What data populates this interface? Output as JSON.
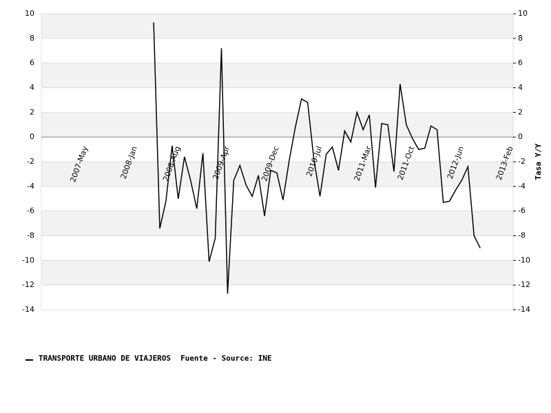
{
  "chart_data": {
    "type": "line",
    "y2_label": "Tasa Y/Y",
    "source": "Fuente - Source: INE",
    "categories": [
      null,
      null,
      null,
      null,
      null,
      null,
      null,
      "2007-May",
      null,
      null,
      null,
      null,
      null,
      null,
      null,
      "2008-Jan",
      null,
      null,
      null,
      null,
      null,
      null,
      "2008-Aug",
      null,
      null,
      null,
      null,
      null,
      null,
      null,
      "2009-Apr",
      null,
      null,
      null,
      null,
      null,
      null,
      null,
      "2009-Dec",
      null,
      null,
      null,
      null,
      null,
      null,
      "2010-Jul",
      null,
      null,
      null,
      null,
      null,
      null,
      null,
      "2011-Mar",
      null,
      null,
      null,
      null,
      null,
      null,
      "2011-Oct",
      null,
      null,
      null,
      null,
      null,
      null,
      null,
      "2012-Jun",
      null,
      null,
      null,
      null,
      null,
      null,
      null,
      "2013-Feb"
    ],
    "series": [
      {
        "name": "TRANSPORTE URBANO DE VIAJEROS",
        "color": "#000000",
        "values": [
          null,
          null,
          null,
          null,
          null,
          null,
          null,
          null,
          null,
          null,
          null,
          null,
          null,
          null,
          null,
          null,
          null,
          null,
          9.3,
          -7.4,
          -5.2,
          -0.7,
          -5.0,
          -1.6,
          -3.5,
          -5.8,
          -1.3,
          -10.1,
          -8.2,
          7.2,
          -12.7,
          -3.5,
          -2.3,
          -3.9,
          -4.8,
          -3.1,
          -6.4,
          -2.7,
          -2.9,
          -5.1,
          -1.9,
          0.8,
          3.1,
          2.8,
          -1.8,
          -4.8,
          -1.4,
          -0.8,
          -2.7,
          0.5,
          -0.4,
          2.0,
          0.6,
          1.8,
          -4.1,
          1.1,
          1.0,
          -2.8,
          4.3,
          1.0,
          -0.1,
          -1.0,
          -0.9,
          0.9,
          0.6,
          -5.3,
          -5.2,
          -4.3,
          -3.5,
          -2.4,
          -8.0,
          -9.0,
          null,
          null,
          null,
          null,
          null
        ]
      }
    ],
    "ylim": [
      -14,
      10
    ],
    "yticks": [
      -14,
      -12,
      -10,
      -8,
      -6,
      -4,
      -2,
      0,
      2,
      4,
      6,
      8,
      10
    ],
    "grid": true
  }
}
